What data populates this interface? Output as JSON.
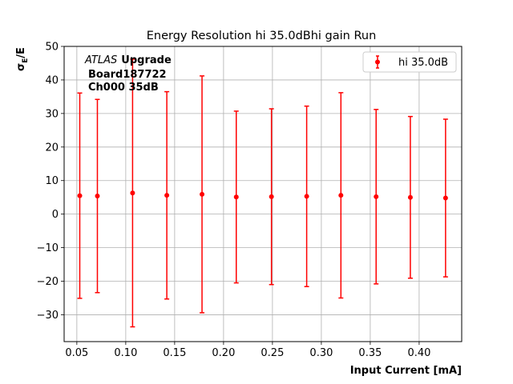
{
  "chart_data": {
    "type": "scatter",
    "title": "Energy Resolution hi 35.0dBhi gain Run",
    "xlabel": "Input Current [mA]",
    "ylabel_main": "σ",
    "ylabel_sub": "E",
    "ylabel_tail": "/E",
    "xlim": [
      0.037,
      0.4435
    ],
    "ylim": [
      -38,
      50
    ],
    "xticks": [
      "0.05",
      "0.10",
      "0.15",
      "0.20",
      "0.25",
      "0.30",
      "0.35",
      "0.40"
    ],
    "xtick_values": [
      0.05,
      0.1,
      0.15,
      0.2,
      0.25,
      0.3,
      0.35,
      0.4
    ],
    "yticks": [
      "−30",
      "−20",
      "−10",
      "0",
      "10",
      "20",
      "30",
      "40",
      "50"
    ],
    "ytick_values": [
      -30,
      -20,
      -10,
      0,
      10,
      20,
      30,
      40,
      50
    ],
    "grid": true,
    "legend_position": "top-right",
    "annotation": {
      "italic": "ATLAS",
      "bold": "Upgrade",
      "line2": "Board187722",
      "line3": "Ch000 35dB"
    },
    "series": [
      {
        "name": "hi 35.0dB",
        "color": "#ff0000",
        "x": [
          0.053,
          0.071,
          0.107,
          0.142,
          0.178,
          0.213,
          0.249,
          0.285,
          0.32,
          0.356,
          0.391,
          0.427
        ],
        "y": [
          5.5,
          5.4,
          6.3,
          5.6,
          5.9,
          5.1,
          5.2,
          5.3,
          5.6,
          5.2,
          5.0,
          4.8
        ],
        "err": [
          30.6,
          28.8,
          39.9,
          30.9,
          35.3,
          25.6,
          26.2,
          26.9,
          30.6,
          26.0,
          24.1,
          23.5
        ]
      }
    ]
  }
}
